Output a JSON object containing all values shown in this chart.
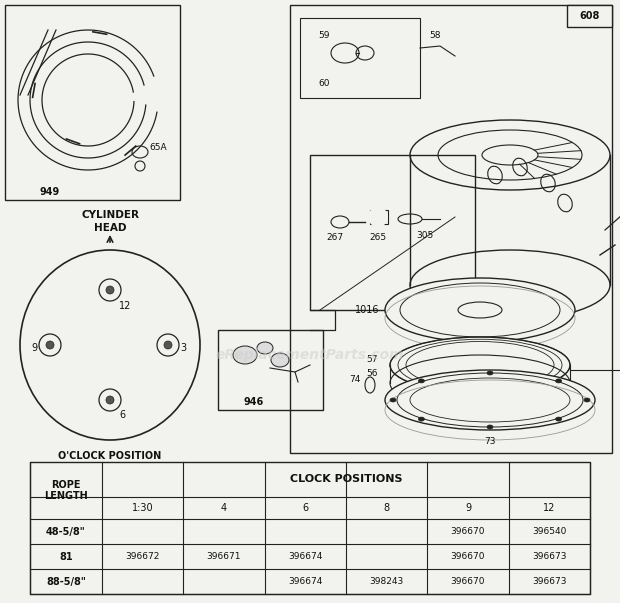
{
  "bg_color": "#f2f2ee",
  "watermark": "eReplacementParts.com",
  "table": {
    "clock_positions": [
      "1:30",
      "4",
      "6",
      "8",
      "9",
      "12"
    ],
    "rows": [
      {
        "rope": "48-5/8\"",
        "1:30": "",
        "4": "",
        "6": "",
        "8": "",
        "9": "396670",
        "12": "396540"
      },
      {
        "rope": "81",
        "1:30": "396672",
        "4": "396671",
        "6": "396674",
        "8": "",
        "9": "396670",
        "12": "396673"
      },
      {
        "rope": "88-5/8\"",
        "1:30": "",
        "4": "",
        "6": "396674",
        "8": "398243",
        "9": "396670",
        "12": "396673"
      }
    ]
  },
  "lc": "#222222",
  "lw": 0.9
}
